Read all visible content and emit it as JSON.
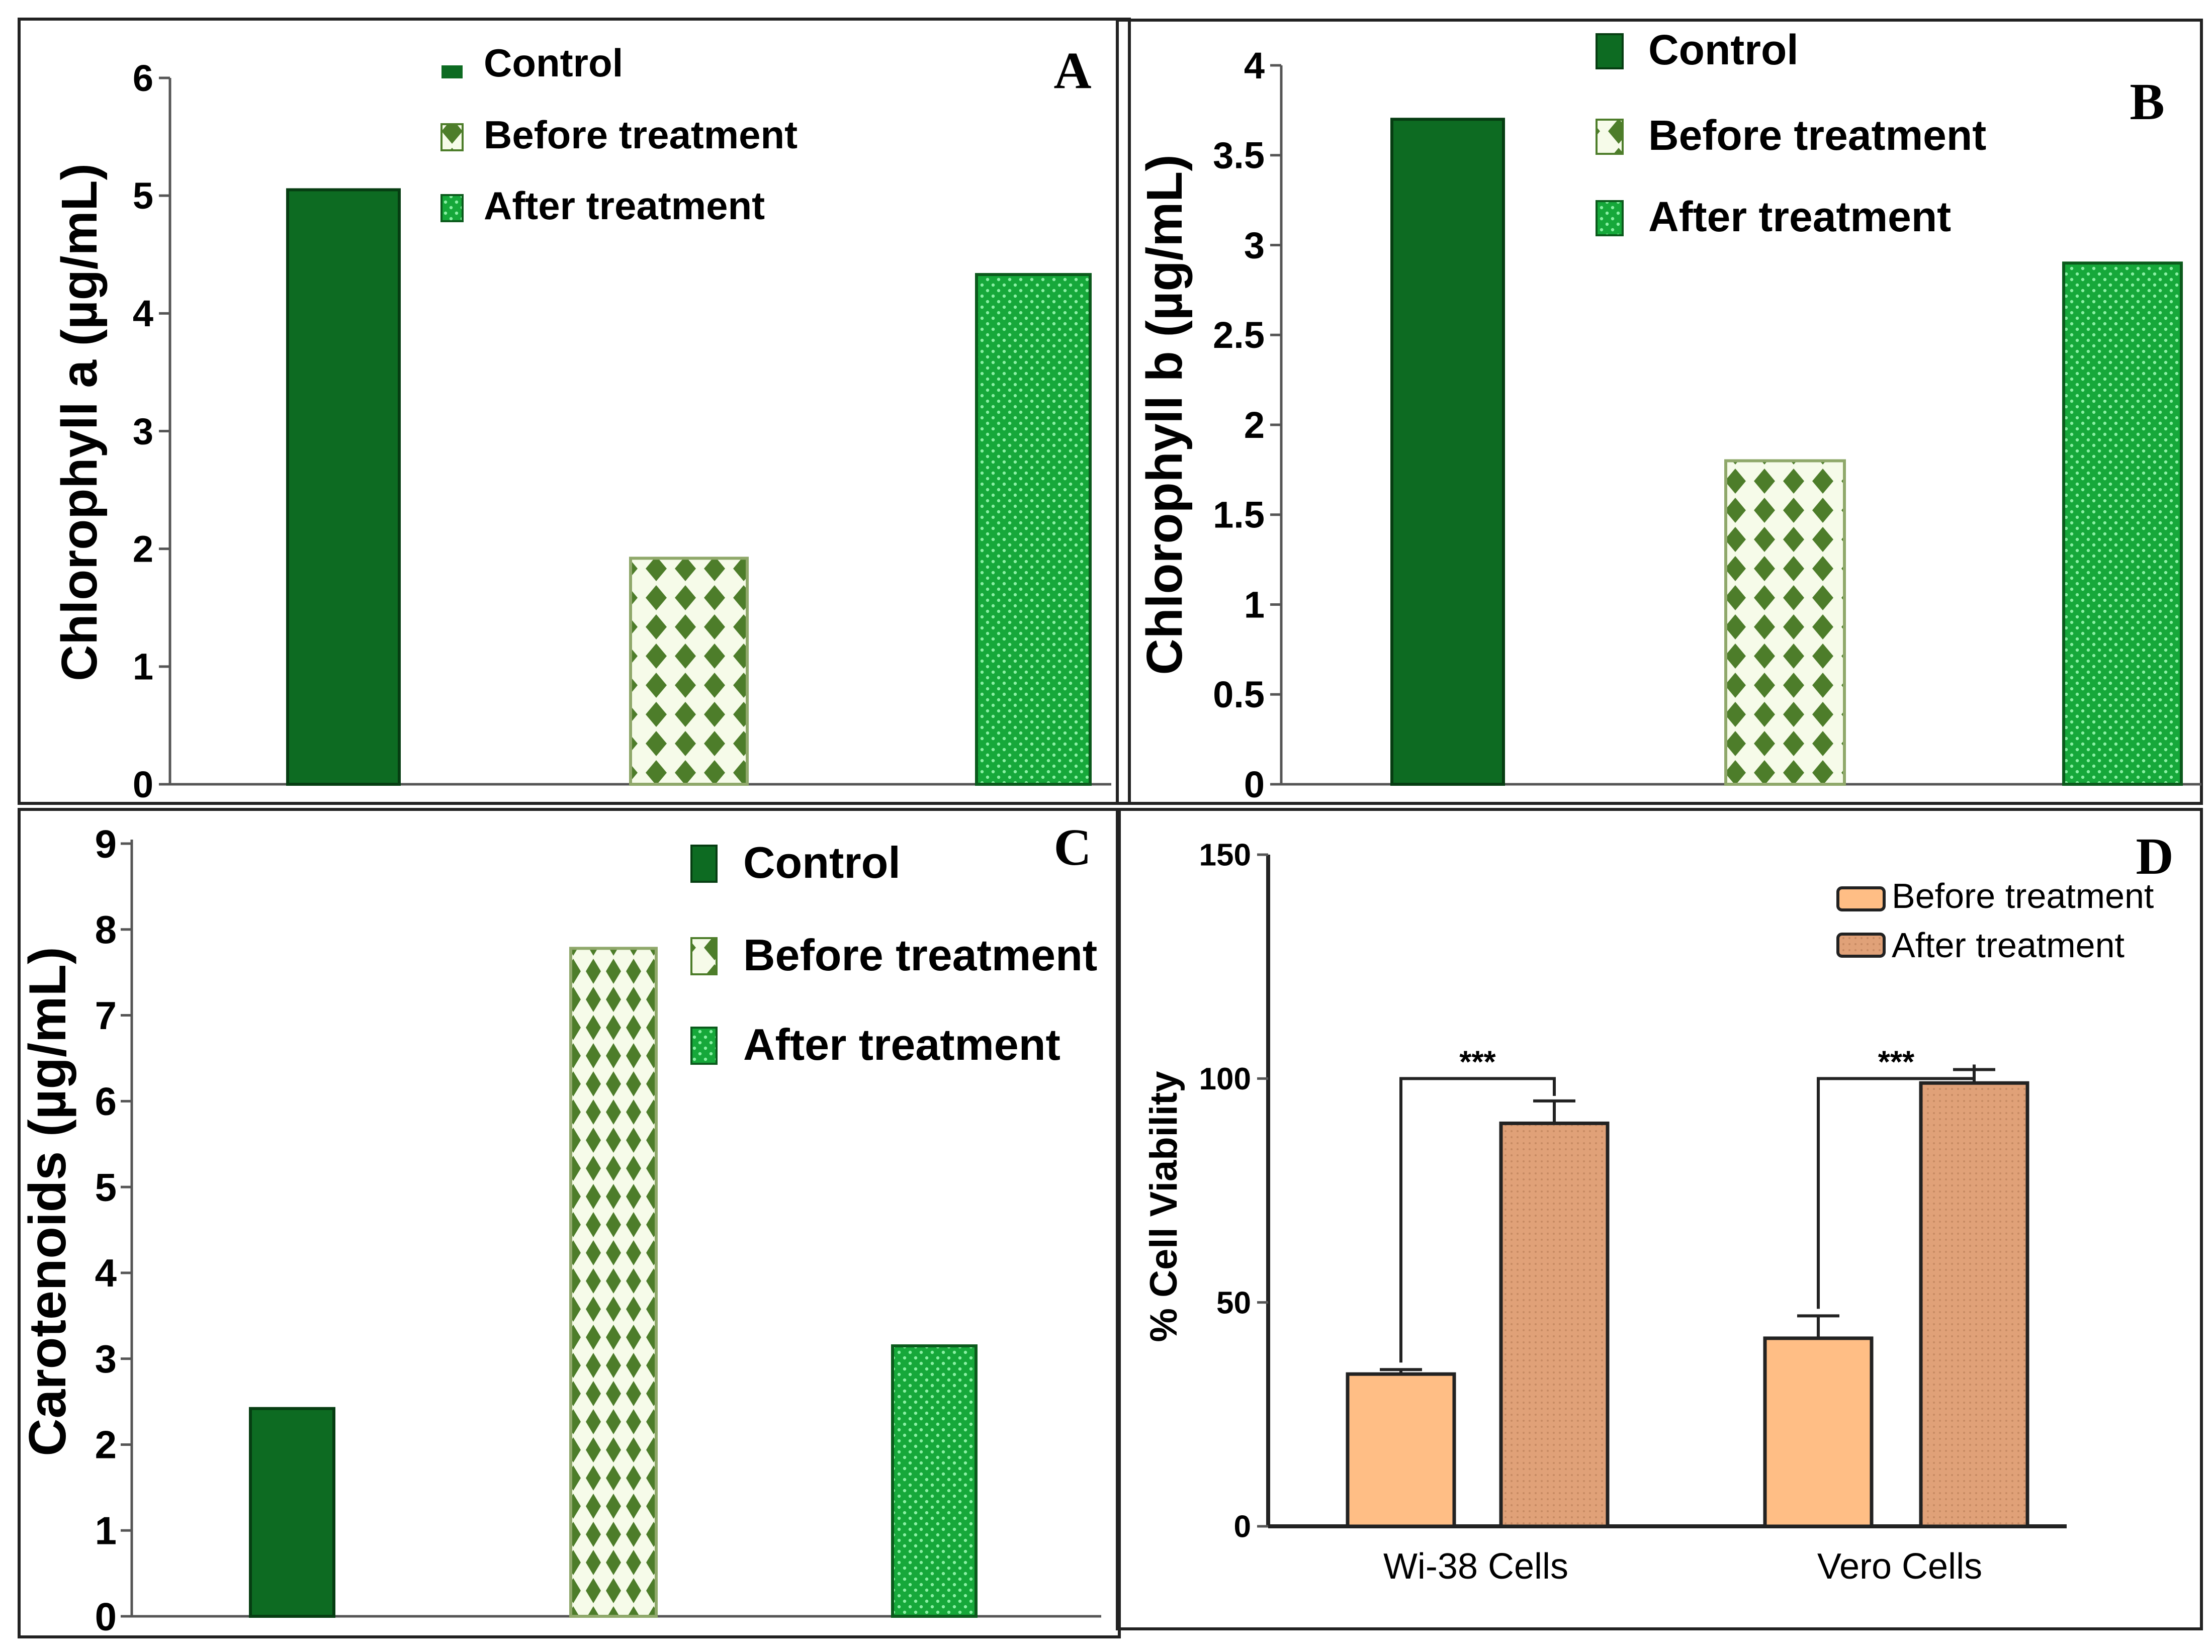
{
  "figure": {
    "panels": [
      "A",
      "B",
      "C",
      "D"
    ]
  },
  "colors": {
    "control": "#0d6b22",
    "control_edge": "#063d12",
    "before_bg": "#f6fbe9",
    "before_diamond": "#4d7d2a",
    "after": "#16a83a",
    "after_dot": "#8af0a4",
    "d_before": "#ffbe85",
    "d_after": "#e0a178",
    "d_after_dot": "#c78a63"
  },
  "chart_data": [
    {
      "panel": "A",
      "type": "bar",
      "categories": [
        "Control",
        "Before treatment",
        "After treatment"
      ],
      "values": [
        5.05,
        1.92,
        4.33
      ],
      "legend": [
        "Control",
        "Before treatment",
        "After treatment"
      ],
      "xlabel": "",
      "ylabel": "Chlorophyll a (µg/mL)",
      "ylim": [
        0,
        6
      ],
      "yticks": [
        0,
        1,
        2,
        3,
        4,
        5,
        6
      ],
      "ytick_labels": [
        "0",
        "1",
        "2",
        "3",
        "4",
        "5",
        "6"
      ],
      "legend_position": "top"
    },
    {
      "panel": "B",
      "type": "bar",
      "categories": [
        "Control",
        "Before treatment",
        "After treatment"
      ],
      "values": [
        3.7,
        1.8,
        2.9
      ],
      "legend": [
        "Control",
        "Before treatment",
        "After treatment"
      ],
      "xlabel": "",
      "ylabel": "Chlorophyll b (µg/mL)",
      "ylim": [
        0,
        4
      ],
      "yticks": [
        0,
        0.5,
        1,
        1.5,
        2,
        2.5,
        3,
        3.5,
        4
      ],
      "ytick_labels": [
        "0",
        "0.5",
        "1",
        "1.5",
        "2",
        "2.5",
        "3",
        "3.5",
        "4"
      ],
      "legend_position": "top"
    },
    {
      "panel": "C",
      "type": "bar",
      "categories": [
        "Control",
        "Before treatment",
        "After treatment"
      ],
      "values": [
        2.42,
        7.78,
        3.15
      ],
      "legend": [
        "Control",
        "Before treatment",
        "After treatment"
      ],
      "xlabel": "",
      "ylabel": "Carotenoids (µg/mL)",
      "ylim": [
        0,
        9
      ],
      "yticks": [
        0,
        1,
        2,
        3,
        4,
        5,
        6,
        7,
        8,
        9
      ],
      "ytick_labels": [
        "0",
        "1",
        "2",
        "3",
        "4",
        "5",
        "6",
        "7",
        "8",
        "9"
      ],
      "legend_position": "top-right"
    },
    {
      "panel": "D",
      "type": "bar",
      "categories": [
        "Wi-38 Cells",
        "Vero Cells"
      ],
      "series": [
        {
          "name": "Before treatment",
          "values": [
            34,
            42
          ],
          "errors": [
            1,
            5
          ]
        },
        {
          "name": "After treatment",
          "values": [
            90,
            99
          ],
          "errors": [
            5,
            3
          ]
        }
      ],
      "significance": [
        "***",
        "***"
      ],
      "xlabel": "",
      "ylabel": "% Cell Viability",
      "ylim": [
        0,
        150
      ],
      "yticks": [
        0,
        50,
        100,
        150
      ],
      "ytick_labels": [
        "0",
        "50",
        "100",
        "150"
      ],
      "legend_position": "top-right"
    }
  ]
}
